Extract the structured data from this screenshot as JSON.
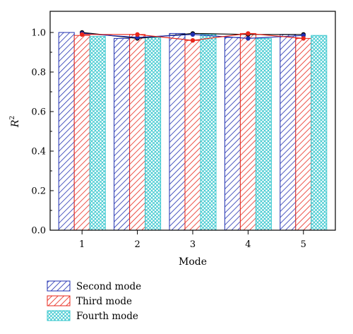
{
  "chart_data": {
    "type": "bar",
    "categories": [
      "1",
      "2",
      "3",
      "4",
      "5"
    ],
    "xlabel": "Mode",
    "ylabel": "R",
    "ylabel_sup": "2",
    "ylim": [
      0.0,
      1.0
    ],
    "yticks": [
      "0.0",
      "0.2",
      "0.4",
      "0.6",
      "0.8",
      "1.0"
    ],
    "grid": false,
    "legend_position": "bottom-left, outside plot",
    "series": [
      {
        "name": "Second mode",
        "color": "#1f2fb0",
        "pattern": "diagonal-hatch",
        "values": [
          1.0,
          0.97,
          0.995,
          0.975,
          0.99
        ]
      },
      {
        "name": "Third mode",
        "color": "#e8261a",
        "pattern": "diagonal-hatch",
        "values": [
          0.985,
          0.99,
          0.96,
          0.995,
          0.97
        ]
      },
      {
        "name": "Fourth mode",
        "color": "#3cc8cf",
        "pattern": "cross-hatch",
        "values": [
          0.98,
          0.975,
          0.99,
          0.97,
          0.985
        ]
      }
    ],
    "marker_lines": [
      {
        "color": "#000000",
        "values": [
          1.0,
          0.97,
          0.995,
          0.99,
          0.99
        ]
      },
      {
        "color": "#1f2fb0",
        "values": [
          0.995,
          0.975,
          0.99,
          0.97,
          0.985
        ]
      },
      {
        "color": "#e8261a",
        "values": [
          0.99,
          0.99,
          0.96,
          0.995,
          0.97
        ]
      }
    ]
  }
}
